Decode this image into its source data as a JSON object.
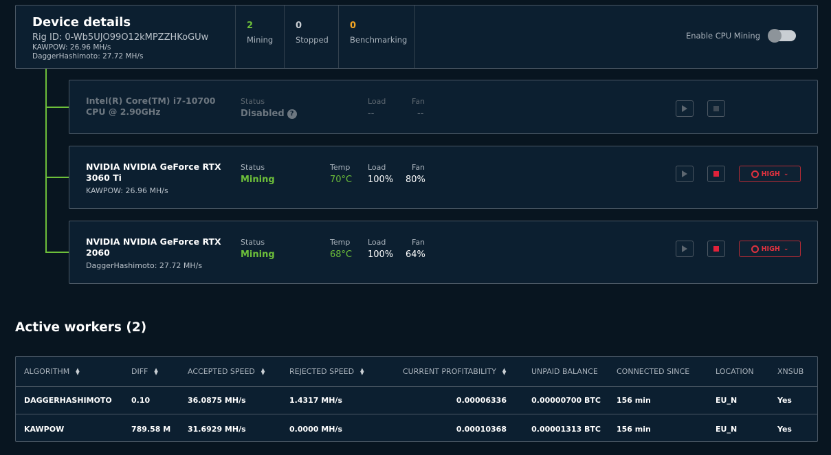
{
  "device": {
    "title": "Device details",
    "rig_id": "Rig ID: 0-Wb5UJO99O12kMPZZHKoGUw",
    "algo1": "KAWPOW: 26.96 MH/s",
    "algo2": "DaggerHashimoto: 27.72 MH/s",
    "stats": [
      {
        "value": "2",
        "label": "Mining",
        "color": "#6dbf3a"
      },
      {
        "value": "0",
        "label": "Stopped",
        "color": "#c9ced3"
      },
      {
        "value": "0",
        "label": "Benchmarking",
        "color": "#f5a623"
      }
    ],
    "enable_cpu_label": "Enable CPU Mining"
  },
  "devices": [
    {
      "name": "Intel(R) Core(TM) i7-10700 CPU @ 2.90GHz",
      "status_label": "Status",
      "status": "Disabled",
      "load_label": "Load",
      "load": "--",
      "fan_label": "Fan",
      "fan": "--"
    },
    {
      "name": "NVIDIA NVIDIA GeForce RTX 3060 Ti",
      "sub": "KAWPOW: 26.96 MH/s",
      "status_label": "Status",
      "status": "Mining",
      "temp_label": "Temp",
      "temp": "70°C",
      "load_label": "Load",
      "load": "100%",
      "fan_label": "Fan",
      "fan": "80%",
      "power": "HIGH"
    },
    {
      "name": "NVIDIA NVIDIA GeForce RTX 2060",
      "sub": "DaggerHashimoto: 27.72 MH/s",
      "status_label": "Status",
      "status": "Mining",
      "temp_label": "Temp",
      "temp": "68°C",
      "load_label": "Load",
      "load": "100%",
      "fan_label": "Fan",
      "fan": "64%",
      "power": "HIGH"
    }
  ],
  "workers": {
    "title": "Active workers (2)",
    "columns": [
      "ALGORITHM",
      "DIFF",
      "ACCEPTED SPEED",
      "REJECTED SPEED",
      "CURRENT PROFITABILITY",
      "UNPAID BALANCE",
      "CONNECTED SINCE",
      "LOCATION",
      "XNSUB"
    ],
    "rows": [
      [
        "DAGGERHASHIMOTO",
        "0.10",
        "36.0875 MH/s",
        "1.4317 MH/s",
        "0.00006336",
        "0.00000700 BTC",
        "156 min",
        "EU_N",
        "Yes"
      ],
      [
        "KAWPOW",
        "789.58 M",
        "31.6929 MH/s",
        "0.0000 MH/s",
        "0.00010368",
        "0.00001313 BTC",
        "156 min",
        "EU_N",
        "Yes"
      ]
    ]
  },
  "colors": {
    "mining": "#6dbf3a",
    "accent_red": "#e1323f",
    "background": "#081520",
    "card": "#0c1f30"
  }
}
